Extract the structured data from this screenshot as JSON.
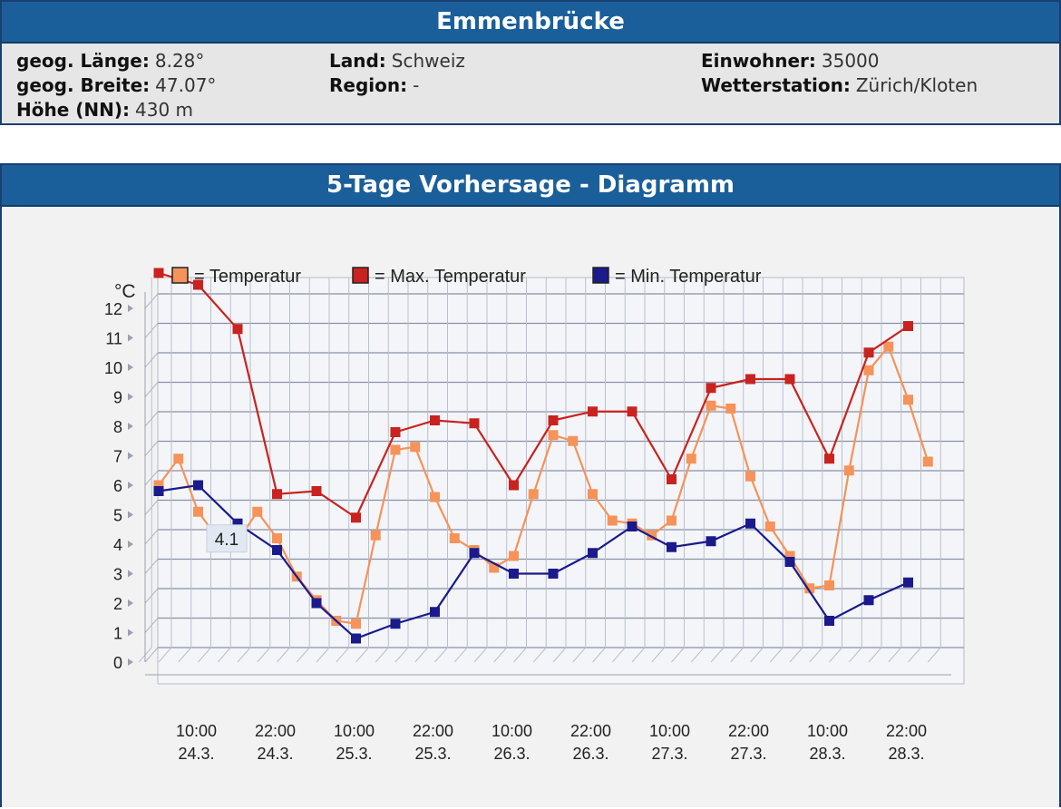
{
  "info": {
    "title": "Emmenbrücke",
    "laenge_label": "geog. Länge:",
    "laenge_value": "8.28°",
    "breite_label": "geog. Breite:",
    "breite_value": "47.07°",
    "hoehe_label": "Höhe (NN):",
    "hoehe_value": "430 m",
    "land_label": "Land:",
    "land_value": "Schweiz",
    "region_label": "Region:",
    "region_value": "-",
    "einwohner_label": "Einwohner:",
    "einwohner_value": "35000",
    "wetter_label": "Wetterstation:",
    "wetter_value": "Zürich/Kloten"
  },
  "chart_header": "5-Tage Vorhersage - Diagramm",
  "colors": {
    "temperatur": "#f5935a",
    "max": "#c9221f",
    "min": "#1a1a8c",
    "header": "#1a5f9a"
  },
  "chart_data": {
    "type": "line",
    "ylabel": "°C",
    "ylim": [
      0,
      13
    ],
    "yticks": [
      "0",
      "1",
      "2",
      "3",
      "4",
      "5",
      "6",
      "7",
      "8",
      "9",
      "10",
      "11",
      "12"
    ],
    "x_ticks": [
      {
        "time": "10:00",
        "date": "24.3."
      },
      {
        "time": "22:00",
        "date": "24.3."
      },
      {
        "time": "10:00",
        "date": "25.3."
      },
      {
        "time": "22:00",
        "date": "25.3."
      },
      {
        "time": "10:00",
        "date": "26.3."
      },
      {
        "time": "22:00",
        "date": "26.3."
      },
      {
        "time": "10:00",
        "date": "27.3."
      },
      {
        "time": "22:00",
        "date": "27.3."
      },
      {
        "time": "10:00",
        "date": "28.3."
      },
      {
        "time": "22:00",
        "date": "28.3."
      }
    ],
    "series": [
      {
        "name": "Temperatur",
        "key": "temperatur",
        "values": [
          {
            "x": 0.0,
            "y": 6.0
          },
          {
            "x": 0.5,
            "y": 6.9
          },
          {
            "x": 1.0,
            "y": 5.1
          },
          {
            "x": 1.5,
            "y": 4.2
          },
          {
            "x": 2.0,
            "y": 4.1
          },
          {
            "x": 2.5,
            "y": 5.1
          },
          {
            "x": 3.0,
            "y": 4.2
          },
          {
            "x": 3.5,
            "y": 2.9
          },
          {
            "x": 4.0,
            "y": 2.1
          },
          {
            "x": 4.5,
            "y": 1.4
          },
          {
            "x": 5.0,
            "y": 1.3
          },
          {
            "x": 5.5,
            "y": 4.3
          },
          {
            "x": 6.0,
            "y": 7.2
          },
          {
            "x": 6.5,
            "y": 7.3
          },
          {
            "x": 7.0,
            "y": 5.6
          },
          {
            "x": 7.5,
            "y": 4.2
          },
          {
            "x": 8.0,
            "y": 3.8
          },
          {
            "x": 8.5,
            "y": 3.2
          },
          {
            "x": 9.0,
            "y": 3.6
          },
          {
            "x": 9.5,
            "y": 5.7
          },
          {
            "x": 10.0,
            "y": 7.7
          },
          {
            "x": 10.5,
            "y": 7.5
          },
          {
            "x": 11.0,
            "y": 5.7
          },
          {
            "x": 11.5,
            "y": 4.8
          },
          {
            "x": 12.0,
            "y": 4.7
          },
          {
            "x": 12.5,
            "y": 4.3
          },
          {
            "x": 13.0,
            "y": 4.8
          },
          {
            "x": 13.5,
            "y": 6.9
          },
          {
            "x": 14.0,
            "y": 8.7
          },
          {
            "x": 14.5,
            "y": 8.6
          },
          {
            "x": 15.0,
            "y": 6.3
          },
          {
            "x": 15.5,
            "y": 4.6
          },
          {
            "x": 16.0,
            "y": 3.6
          },
          {
            "x": 16.5,
            "y": 2.5
          },
          {
            "x": 17.0,
            "y": 2.6
          },
          {
            "x": 17.5,
            "y": 6.5
          },
          {
            "x": 18.0,
            "y": 9.9
          },
          {
            "x": 18.5,
            "y": 10.7
          },
          {
            "x": 19.0,
            "y": 8.9
          },
          {
            "x": 19.5,
            "y": 6.8
          }
        ]
      },
      {
        "name": "Max. Temperatur",
        "key": "max",
        "values": [
          {
            "x": 0.0,
            "y": 13.2
          },
          {
            "x": 1.0,
            "y": 12.8
          },
          {
            "x": 2.0,
            "y": 11.3
          },
          {
            "x": 3.0,
            "y": 5.7
          },
          {
            "x": 4.0,
            "y": 5.8
          },
          {
            "x": 5.0,
            "y": 4.9
          },
          {
            "x": 6.0,
            "y": 7.8
          },
          {
            "x": 7.0,
            "y": 8.2
          },
          {
            "x": 8.0,
            "y": 8.1
          },
          {
            "x": 9.0,
            "y": 6.0
          },
          {
            "x": 10.0,
            "y": 8.2
          },
          {
            "x": 11.0,
            "y": 8.5
          },
          {
            "x": 12.0,
            "y": 8.5
          },
          {
            "x": 13.0,
            "y": 6.2
          },
          {
            "x": 14.0,
            "y": 9.3
          },
          {
            "x": 15.0,
            "y": 9.6
          },
          {
            "x": 16.0,
            "y": 9.6
          },
          {
            "x": 17.0,
            "y": 6.9
          },
          {
            "x": 18.0,
            "y": 10.5
          },
          {
            "x": 19.0,
            "y": 11.4
          }
        ]
      },
      {
        "name": "Min. Temperatur",
        "key": "min",
        "values": [
          {
            "x": 0.0,
            "y": 5.8
          },
          {
            "x": 1.0,
            "y": 6.0
          },
          {
            "x": 2.0,
            "y": 4.7
          },
          {
            "x": 3.0,
            "y": 3.8
          },
          {
            "x": 4.0,
            "y": 2.0
          },
          {
            "x": 5.0,
            "y": 0.8
          },
          {
            "x": 6.0,
            "y": 1.3
          },
          {
            "x": 7.0,
            "y": 1.7
          },
          {
            "x": 8.0,
            "y": 3.7
          },
          {
            "x": 9.0,
            "y": 3.0
          },
          {
            "x": 10.0,
            "y": 3.0
          },
          {
            "x": 11.0,
            "y": 3.7
          },
          {
            "x": 12.0,
            "y": 4.6
          },
          {
            "x": 13.0,
            "y": 3.9
          },
          {
            "x": 14.0,
            "y": 4.1
          },
          {
            "x": 15.0,
            "y": 4.7
          },
          {
            "x": 16.0,
            "y": 3.4
          },
          {
            "x": 17.0,
            "y": 1.4
          },
          {
            "x": 18.0,
            "y": 2.1
          },
          {
            "x": 19.0,
            "y": 2.7
          }
        ]
      }
    ],
    "tooltip": {
      "label": "4.1",
      "series": "Temperatur",
      "x": 2.0
    },
    "grid": true,
    "legend": "top"
  }
}
